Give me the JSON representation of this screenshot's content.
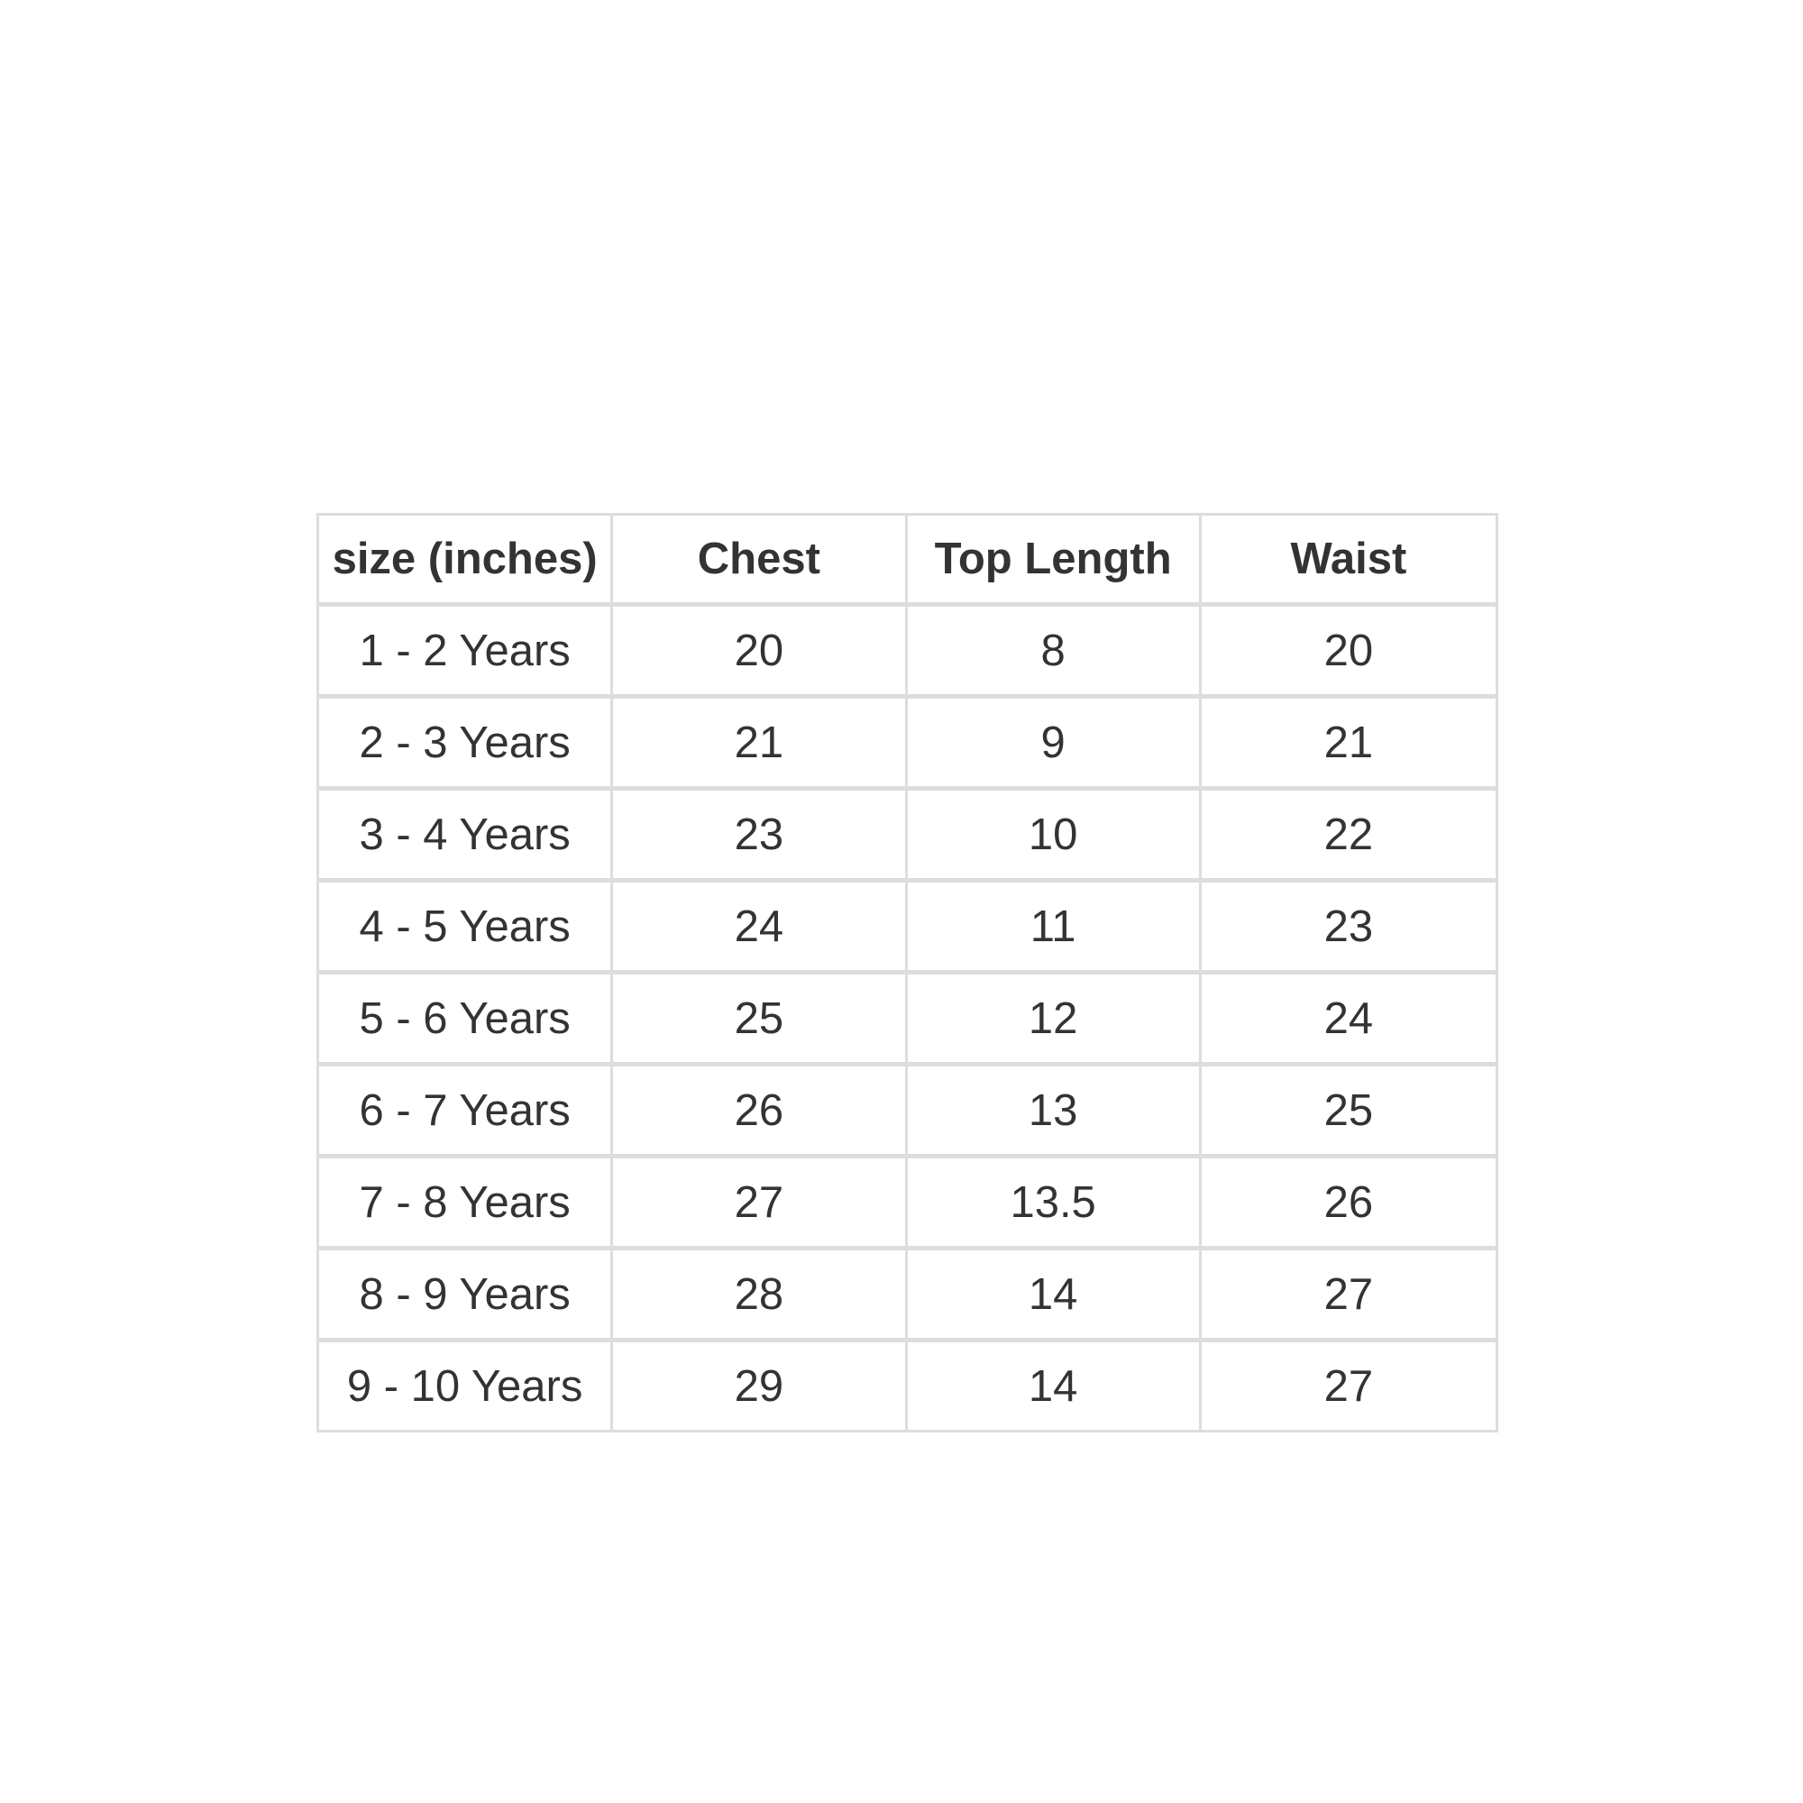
{
  "table": {
    "columns": [
      "size (inches)",
      "Chest",
      "Top Length",
      "Waist"
    ],
    "rows": [
      [
        "1 - 2 Years",
        "20",
        "8",
        "20"
      ],
      [
        "2 - 3 Years",
        "21",
        "9",
        "21"
      ],
      [
        "3 - 4 Years",
        "23",
        "10",
        "22"
      ],
      [
        "4 - 5 Years",
        "24",
        "11",
        "23"
      ],
      [
        "5 - 6 Years",
        "25",
        "12",
        "24"
      ],
      [
        "6 - 7 Years",
        "26",
        "13",
        "25"
      ],
      [
        "7 - 8 Years",
        "27",
        "13.5",
        "26"
      ],
      [
        "8 - 9 Years",
        "28",
        "14",
        "27"
      ],
      [
        "9 - 10 Years",
        "29",
        "14",
        "27"
      ]
    ]
  },
  "colors": {
    "border": "#dddddd",
    "text": "#333333",
    "background": "#ffffff"
  }
}
